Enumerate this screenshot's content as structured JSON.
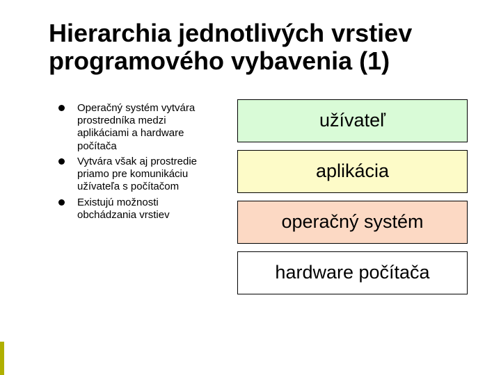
{
  "title": "Hierarchia jednotlivých vrstiev programového vybavenia (1)",
  "bullets": [
    "Operačný systém vytvára prostredníka medzi aplikáciami a hardware počítača",
    "Vytvára však aj prostredie priamo pre komunikáciu užívateľa s počítačom",
    "Existujú možnosti obchádzania vrstiev"
  ],
  "layers": [
    {
      "label": "užívateľ",
      "bg": "#d9fbd7"
    },
    {
      "label": "aplikácia",
      "bg": "#fdfbc8"
    },
    {
      "label": "operačný systém",
      "bg": "#fcd9c4"
    },
    {
      "label": "hardware počítača",
      "bg": "#ffffff"
    }
  ],
  "style": {
    "title_fontsize": 36,
    "title_color": "#000000",
    "bullet_fontsize": 15,
    "bullet_dot_color": "#000000",
    "layer_fontsize": 27,
    "layer_border": "#000000",
    "accent_color": "#b0b000",
    "background": "#ffffff"
  }
}
